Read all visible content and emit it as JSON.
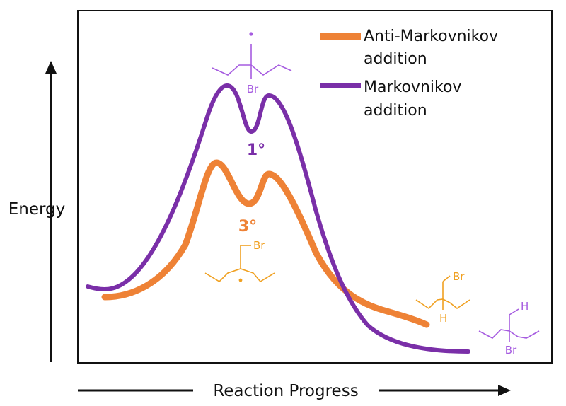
{
  "diagram": {
    "axes": {
      "y_label": "Energy",
      "x_label": "Reaction Progress"
    },
    "legend": [
      {
        "line1": "Anti-Markovnikov",
        "line2": "addition",
        "color": "#ee8236"
      },
      {
        "line1": "Markovnikov",
        "line2": "addition",
        "color": "#7a2fa8"
      }
    ],
    "intermediates": {
      "markovnikov_label": "1°",
      "anti_markovnikov_label": "3°"
    },
    "atoms": {
      "top_structure_Br": "Br",
      "middle_structure_Br": "Br",
      "product_orange_Br": "Br",
      "product_orange_H": "H",
      "product_purple_H": "H",
      "product_purple_Br": "Br"
    },
    "colors": {
      "orange": "#ee8236",
      "purple": "#7a2fa8",
      "structure_orange": "#f0a020",
      "structure_purple": "#a65ce0"
    }
  }
}
